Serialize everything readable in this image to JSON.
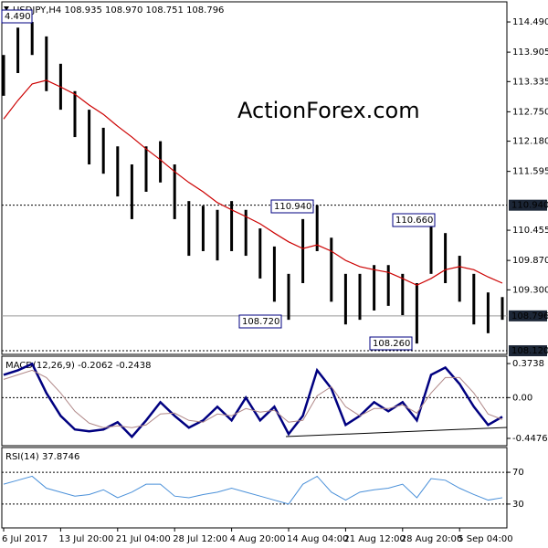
{
  "chart_data": [
    {
      "type": "ohlc",
      "title": "USDJPY,H4  108.935 108.970 108.751 108.796",
      "watermark": "ActionForex.com",
      "color": "#000000",
      "categories": [
        "6 Jul 2017",
        null,
        null,
        null,
        "13 Jul 20:00",
        null,
        null,
        null,
        "21 Jul 04:00",
        null,
        null,
        null,
        "28 Jul 12:00",
        null,
        null,
        null,
        "4 Aug 20:00",
        null,
        null,
        null,
        "14 Aug 04:00",
        null,
        null,
        null,
        "21 Aug 12:00",
        null,
        null,
        null,
        "28 Aug 20:00",
        null,
        null,
        null,
        "5 Sep 04:00",
        null,
        null,
        null
      ],
      "high": [
        113.85,
        114.38,
        114.49,
        114.21,
        113.68,
        113.15,
        112.79,
        112.44,
        112.08,
        111.73,
        112.08,
        112.18,
        111.73,
        111.02,
        110.93,
        110.85,
        111.02,
        110.85,
        110.49,
        110.14,
        109.61,
        110.67,
        110.94,
        110.31,
        109.61,
        109.61,
        109.78,
        109.78,
        109.61,
        109.43,
        110.66,
        110.4,
        109.96,
        109.61,
        109.25,
        109.16
      ],
      "low": [
        113.06,
        113.5,
        113.85,
        113.15,
        112.79,
        112.26,
        111.73,
        111.55,
        111.11,
        110.67,
        111.2,
        111.38,
        110.67,
        109.96,
        110.05,
        109.87,
        110.05,
        109.96,
        109.52,
        109.07,
        108.72,
        109.43,
        110.05,
        109.07,
        108.63,
        108.72,
        108.9,
        108.99,
        108.81,
        108.26,
        109.61,
        109.43,
        109.07,
        108.63,
        108.46,
        108.72
      ],
      "ma": {
        "color": "#cc0000",
        "values": [
          112.61,
          112.97,
          113.29,
          113.36,
          113.23,
          113.09,
          112.88,
          112.7,
          112.47,
          112.26,
          112.03,
          111.82,
          111.59,
          111.38,
          111.2,
          110.99,
          110.85,
          110.72,
          110.58,
          110.4,
          110.23,
          110.1,
          110.17,
          110.05,
          109.87,
          109.75,
          109.69,
          109.64,
          109.52,
          109.39,
          109.52,
          109.69,
          109.75,
          109.69,
          109.55,
          109.43
        ]
      },
      "ylim": [
        108.05,
        114.88
      ],
      "yticks": [
        {
          "value": 114.49,
          "label": "114.490"
        },
        113.905,
        113.335,
        {
          "value": 112.75,
          "label": "112.750"
        },
        {
          "value": 112.18,
          "label": "112.180"
        },
        111.595,
        110.455,
        {
          "value": 109.87,
          "label": "109.870"
        },
        {
          "value": 109.3,
          "label": "109.300"
        }
      ],
      "hlines": [
        {
          "value": 110.94,
          "label": "110.940",
          "style": "dotted"
        },
        {
          "value": 108.796,
          "label": "108.796",
          "style": "solid"
        },
        {
          "value": 108.12,
          "label": "108.120",
          "style": "dotted"
        }
      ],
      "annotations": [
        "4.490",
        "110.940",
        "110.660",
        "108.720",
        "108.260"
      ]
    },
    {
      "type": "line",
      "title": "MACD(12,26,9) -0.2062 -0.2438",
      "ylim": [
        -0.528,
        0.4445
      ],
      "yticks": [
        0.3738,
        {
          "value": 0,
          "label": "0.00"
        },
        -0.4476
      ],
      "hlines": [
        0
      ],
      "series": [
        {
          "color": "#000080",
          "width": 2.5,
          "values": [
            0.25,
            0.3,
            0.37,
            0.05,
            -0.2,
            -0.35,
            -0.37,
            -0.35,
            -0.27,
            -0.43,
            -0.25,
            -0.05,
            -0.2,
            -0.33,
            -0.25,
            -0.1,
            -0.25,
            0.0,
            -0.25,
            -0.1,
            -0.4,
            -0.2,
            0.3,
            0.1,
            -0.3,
            -0.2,
            -0.05,
            -0.15,
            -0.05,
            -0.25,
            0.25,
            0.33,
            0.15,
            -0.1,
            -0.3,
            -0.21
          ]
        },
        {
          "color": "#b08888",
          "width": 1,
          "values": [
            0.2,
            0.25,
            0.3,
            0.22,
            0.05,
            -0.15,
            -0.28,
            -0.33,
            -0.31,
            -0.33,
            -0.3,
            -0.18,
            -0.17,
            -0.25,
            -0.27,
            -0.18,
            -0.2,
            -0.12,
            -0.16,
            -0.14,
            -0.27,
            -0.25,
            0.02,
            0.12,
            -0.1,
            -0.2,
            -0.12,
            -0.12,
            -0.08,
            -0.17,
            0.05,
            0.22,
            0.22,
            0.05,
            -0.18,
            -0.24
          ]
        }
      ]
    },
    {
      "type": "line",
      "title": "RSI(14) 37.8746",
      "ylim": [
        0,
        100
      ],
      "yticks": [
        70,
        30
      ],
      "hlines": [
        70,
        30
      ],
      "series": [
        {
          "color": "#4a90d9",
          "width": 1,
          "values": [
            55,
            60,
            65,
            50,
            45,
            40,
            42,
            48,
            38,
            45,
            55,
            55,
            40,
            38,
            42,
            45,
            50,
            45,
            40,
            35,
            30,
            55,
            65,
            45,
            35,
            45,
            48,
            50,
            55,
            38,
            62,
            60,
            50,
            42,
            35,
            38
          ]
        }
      ]
    }
  ]
}
